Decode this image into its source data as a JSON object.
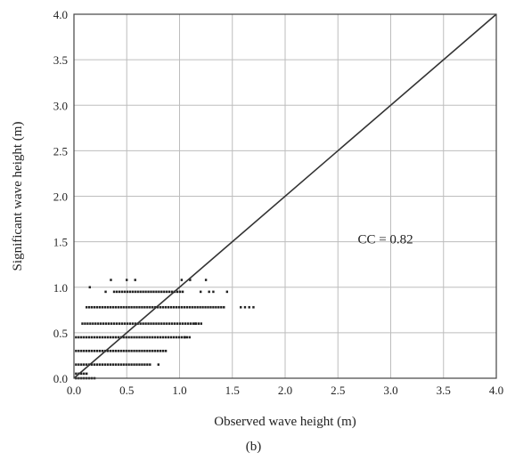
{
  "chart_data": {
    "type": "scatter",
    "xlabel": "Observed wave height (m)",
    "ylabel": "Significant wave height (m)",
    "xlim": [
      0.0,
      4.0
    ],
    "ylim": [
      0.0,
      4.0
    ],
    "xticks": [
      "0.0",
      "0.5",
      "1.0",
      "1.5",
      "2.0",
      "2.5",
      "3.0",
      "3.5",
      "4.0"
    ],
    "yticks": [
      "0.0",
      "0.5",
      "1.0",
      "1.5",
      "2.0",
      "2.5",
      "3.0",
      "3.5",
      "4.0"
    ],
    "grid": true,
    "reference_line": {
      "from": [
        0.0,
        0.0
      ],
      "to": [
        4.0,
        4.0
      ]
    },
    "annotation": {
      "text": "CC = 0.82",
      "x": 2.95,
      "y": 1.48
    },
    "point_color": "#222222",
    "line_color": "#333333",
    "grid_color": "#bdbdbd",
    "rows": [
      {
        "y": 0.0,
        "segments": [
          [
            0.02,
            0.2
          ]
        ]
      },
      {
        "y": 0.05,
        "segments": [
          [
            0.02,
            0.12
          ]
        ]
      },
      {
        "y": 0.15,
        "segments": [
          [
            0.02,
            0.72
          ]
        ],
        "scatter": [
          0.8
        ]
      },
      {
        "y": 0.3,
        "segments": [
          [
            0.02,
            0.88
          ]
        ]
      },
      {
        "y": 0.45,
        "segments": [
          [
            0.02,
            1.1
          ]
        ],
        "scatter": [
          1.05
        ]
      },
      {
        "y": 0.6,
        "segments": [
          [
            0.08,
            1.22
          ]
        ],
        "scatter": [
          1.15
        ]
      },
      {
        "y": 0.78,
        "segments": [
          [
            0.12,
            1.42
          ]
        ],
        "scatter": [
          1.58,
          1.62,
          1.66,
          1.7
        ]
      },
      {
        "y": 0.95,
        "segments": [
          [
            0.38,
            1.05
          ]
        ],
        "scatter": [
          0.3,
          1.2,
          1.28,
          1.32,
          1.45
        ]
      },
      {
        "y": 1.0,
        "scatter": [
          0.15
        ]
      },
      {
        "y": 1.08,
        "scatter": [
          0.35,
          0.5,
          0.58,
          1.02,
          1.1,
          1.25
        ]
      }
    ]
  },
  "caption": "(b)"
}
